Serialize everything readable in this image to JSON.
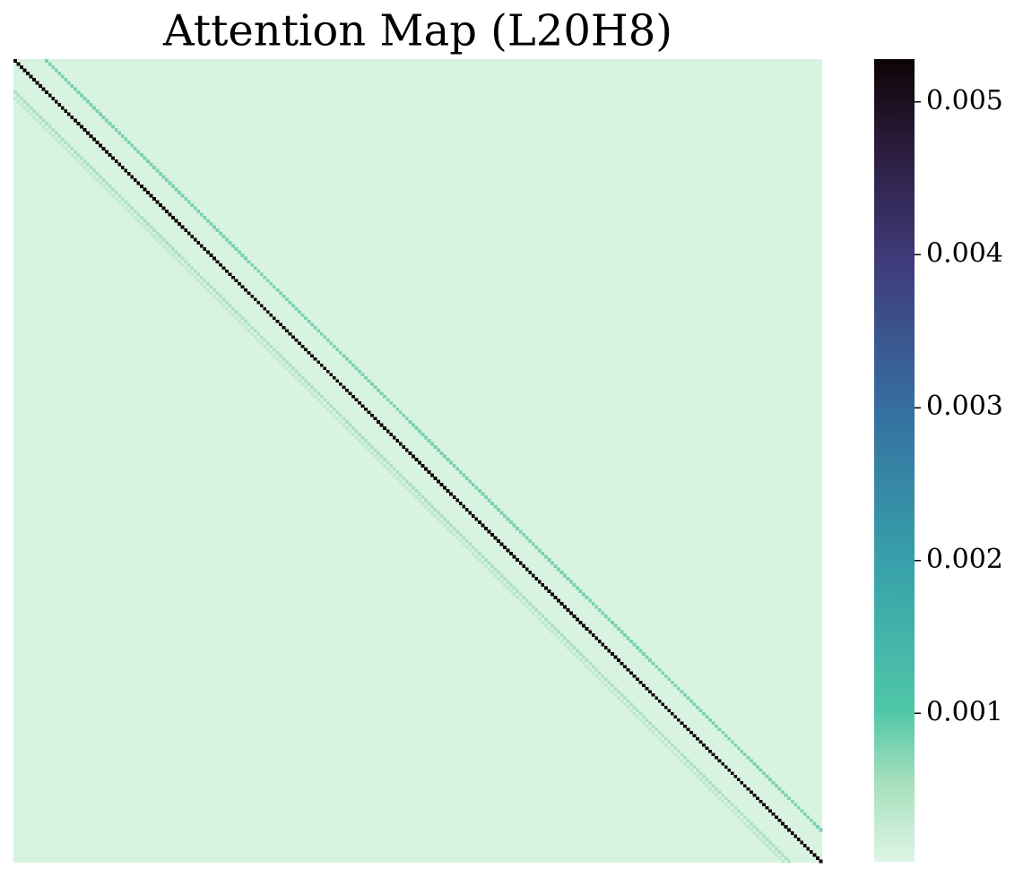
{
  "chart_data": {
    "type": "heatmap",
    "title": "Attention Map (L20H8)",
    "size": 256,
    "background": 8e-05,
    "diagonals": [
      {
        "offset": 0,
        "value": 0.0052
      },
      {
        "offset": 10,
        "value": 0.0008
      },
      {
        "offset": -10,
        "value": 0.0005
      },
      {
        "offset": -12,
        "value": 0.0003
      }
    ],
    "clim": [
      3e-05,
      0.00528
    ],
    "cticks": [
      0.001,
      0.002,
      0.003,
      0.004,
      0.005
    ],
    "colormap": [
      {
        "at": 0,
        "color": "#def5e5"
      },
      {
        "at": 0.1,
        "color": "#a5dfbc"
      },
      {
        "at": 0.19,
        "color": "#4fc6a8"
      },
      {
        "at": 0.375,
        "color": "#37a0aa"
      },
      {
        "at": 0.56,
        "color": "#3570a0"
      },
      {
        "at": 0.75,
        "color": "#3f3a7a"
      },
      {
        "at": 0.9,
        "color": "#2a1a38"
      },
      {
        "at": 1,
        "color": "#0b0405"
      }
    ]
  }
}
